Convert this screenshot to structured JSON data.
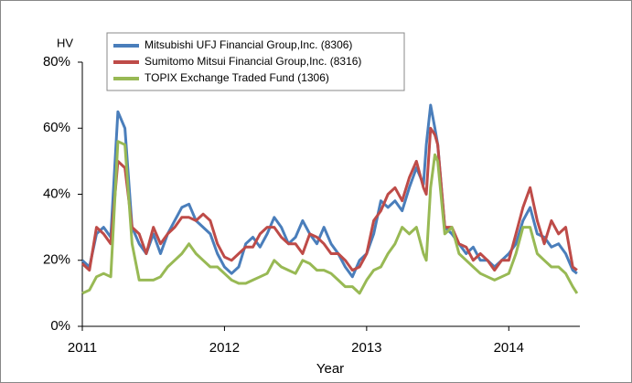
{
  "chart_data": {
    "type": "line",
    "y_axis_label": "HV",
    "x_axis_label": "Year",
    "xlim": [
      2011,
      2014.5
    ],
    "xticks": [
      2011,
      2012,
      2013,
      2014
    ],
    "ylim": [
      0,
      80
    ],
    "yticks": [
      {
        "value": 0,
        "label": "0%"
      },
      {
        "value": 20,
        "label": "20%"
      },
      {
        "value": 40,
        "label": "40%"
      },
      {
        "value": 60,
        "label": "60%"
      },
      {
        "value": 80,
        "label": "80%"
      }
    ],
    "grid": false,
    "legend": "upper left",
    "x": [
      2011.0,
      2011.05,
      2011.1,
      2011.15,
      2011.2,
      2011.25,
      2011.3,
      2011.35,
      2011.4,
      2011.45,
      2011.5,
      2011.55,
      2011.6,
      2011.65,
      2011.7,
      2011.75,
      2011.8,
      2011.85,
      2011.9,
      2011.95,
      2012.0,
      2012.05,
      2012.1,
      2012.15,
      2012.2,
      2012.25,
      2012.3,
      2012.35,
      2012.4,
      2012.45,
      2012.5,
      2012.55,
      2012.6,
      2012.65,
      2012.7,
      2012.75,
      2012.8,
      2012.85,
      2012.9,
      2012.95,
      2013.0,
      2013.05,
      2013.1,
      2013.15,
      2013.2,
      2013.25,
      2013.3,
      2013.35,
      2013.4,
      2013.42,
      2013.45,
      2013.48,
      2013.5,
      2013.55,
      2013.6,
      2013.65,
      2013.7,
      2013.75,
      2013.8,
      2013.85,
      2013.9,
      2013.95,
      2014.0,
      2014.05,
      2014.1,
      2014.15,
      2014.2,
      2014.25,
      2014.3,
      2014.35,
      2014.4,
      2014.45,
      2014.48
    ],
    "series": [
      {
        "name": "Mitsubishi UFJ Financial Group,Inc. (8306)",
        "color": "#4a7ebb",
        "values": [
          20,
          18,
          28,
          30,
          27,
          65,
          60,
          30,
          25,
          22,
          28,
          22,
          28,
          32,
          36,
          37,
          32,
          30,
          28,
          22,
          18,
          16,
          18,
          25,
          27,
          24,
          28,
          33,
          30,
          25,
          27,
          32,
          28,
          25,
          30,
          25,
          22,
          18,
          15,
          20,
          22,
          28,
          38,
          36,
          38,
          35,
          42,
          48,
          43,
          55,
          67,
          60,
          55,
          30,
          28,
          25,
          22,
          24,
          20,
          20,
          18,
          20,
          22,
          25,
          32,
          36,
          28,
          27,
          24,
          25,
          22,
          17,
          16
        ]
      },
      {
        "name": "Sumitomo Mitsui Financial Group,Inc. (8316)",
        "color": "#be4b48",
        "values": [
          19,
          17,
          30,
          28,
          25,
          50,
          48,
          30,
          28,
          22,
          30,
          25,
          28,
          30,
          33,
          33,
          32,
          34,
          32,
          25,
          21,
          20,
          22,
          24,
          24,
          28,
          30,
          30,
          27,
          25,
          25,
          22,
          28,
          27,
          25,
          22,
          22,
          20,
          17,
          18,
          22,
          32,
          35,
          40,
          42,
          38,
          45,
          50,
          42,
          40,
          60,
          58,
          55,
          30,
          30,
          25,
          24,
          20,
          22,
          20,
          17,
          20,
          20,
          28,
          36,
          42,
          32,
          25,
          32,
          28,
          30,
          18,
          17
        ]
      },
      {
        "name": "TOPIX Exchange Traded Fund (1306)",
        "color": "#98b954",
        "values": [
          10,
          11,
          15,
          16,
          15,
          56,
          55,
          25,
          14,
          14,
          14,
          15,
          18,
          20,
          22,
          25,
          22,
          20,
          18,
          18,
          16,
          14,
          13,
          13,
          14,
          15,
          16,
          20,
          18,
          17,
          16,
          20,
          19,
          17,
          17,
          16,
          14,
          12,
          12,
          10,
          14,
          17,
          18,
          22,
          25,
          30,
          28,
          30,
          22,
          20,
          42,
          52,
          50,
          28,
          30,
          22,
          20,
          18,
          16,
          15,
          14,
          15,
          16,
          22,
          30,
          30,
          22,
          20,
          18,
          18,
          16,
          12,
          10
        ]
      }
    ]
  }
}
